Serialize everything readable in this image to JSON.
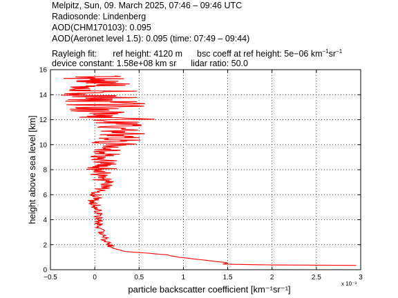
{
  "header": {
    "line1": "Melpitz, Sun, 09. March 2025, 07:46 – 09:46 UTC",
    "line2": "Radiosonde: Lindenberg",
    "line3": "AOD(CHM170103): 0.095",
    "line4": "AOD(Aeronet level 1.5): 0.095   (time: 07:49 – 09:44)",
    "rayleigh_label": "Rayleigh fit:",
    "ref_height": "ref height: 4120 m",
    "bsc_coeff_prefix": "bsc coeff at ref height: 5e−06 km",
    "bsc_coeff_sup1": "−1",
    "bsc_coeff_mid": "sr",
    "bsc_coeff_sup2": "−1",
    "device_constant": "device constant: 1.58e+08 km sr",
    "lidar_ratio": "lidar ratio: 50.0"
  },
  "chart_data": {
    "type": "line",
    "title": "",
    "xlabel": "particle backscatter coefficient [km⁻¹sr⁻¹]",
    "ylabel": "height above sea level [km]",
    "x_scale_note": "x 10⁻³",
    "xlim": [
      -0.5,
      3
    ],
    "ylim": [
      0,
      16
    ],
    "x_ticks": [
      "−0.5",
      "0",
      "0.5",
      "1",
      "1.5",
      "2",
      "2.5",
      "3"
    ],
    "y_ticks": [
      "0",
      "2",
      "4",
      "6",
      "8",
      "10",
      "12",
      "14",
      "16"
    ],
    "grid": true,
    "series": [
      {
        "color": "#ff0000",
        "x": [
          2.95,
          2.0,
          1.45,
          1.5,
          1.2,
          0.95,
          0.8,
          0.55,
          0.35,
          0.27,
          0.22,
          0.2,
          0.18,
          0.16,
          0.15,
          0.12,
          0.1,
          0.07,
          0.05,
          0.04,
          0.05,
          0.03,
          0.0,
          0.02,
          0.05,
          0.07,
          0.1,
          0.05,
          0.08,
          0.12,
          0.2,
          0.3,
          0.25,
          0.15,
          0.05,
          0.1,
          0.02,
          0.0,
          0.05
        ],
        "y": [
          0.35,
          0.38,
          0.45,
          0.55,
          0.8,
          1.0,
          1.2,
          1.35,
          1.45,
          1.6,
          1.7,
          1.75,
          1.9,
          2.0,
          2.2,
          2.4,
          2.7,
          3.0,
          3.5,
          4.0,
          4.5,
          5.0,
          5.5,
          6.0,
          6.3,
          6.5,
          7.0,
          7.5,
          8.0,
          9.0,
          10.0,
          11.0,
          12.0,
          13.0,
          14.0,
          14.5,
          15.0,
          15.3,
          15.5
        ]
      }
    ]
  }
}
